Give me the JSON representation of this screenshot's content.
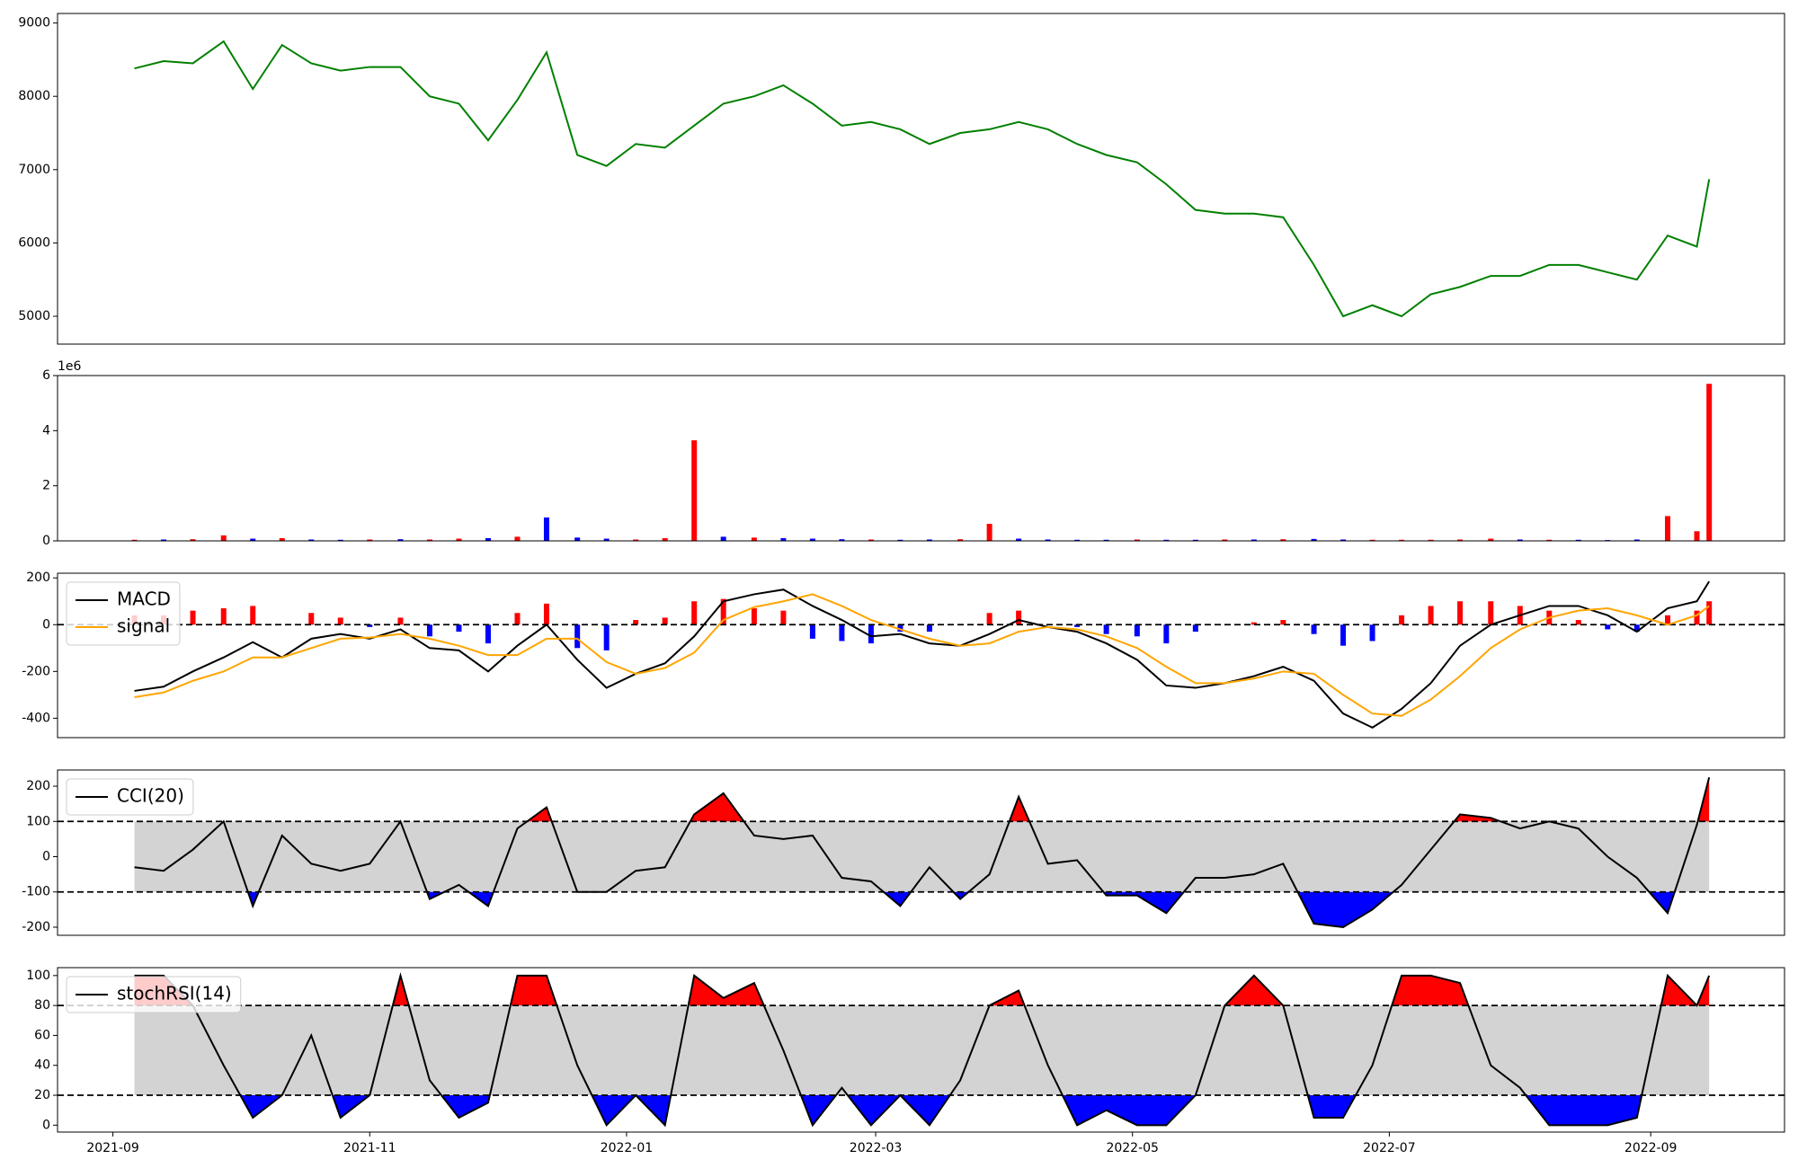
{
  "chart_data": [
    {
      "type": "line",
      "color": "green",
      "x": [
        2021.68,
        2021.699,
        2021.718,
        2021.738,
        2021.757,
        2021.776,
        2021.795,
        2021.814,
        2021.833,
        2021.853,
        2021.872,
        2021.891,
        2021.91,
        2021.929,
        2021.948,
        2021.968,
        2021.987,
        2022.006,
        2022.025,
        2022.044,
        2022.063,
        2022.083,
        2022.102,
        2022.121,
        2022.14,
        2022.159,
        2022.178,
        2022.197,
        2022.217,
        2022.236,
        2022.255,
        2022.274,
        2022.293,
        2022.312,
        2022.332,
        2022.351,
        2022.37,
        2022.389,
        2022.408,
        2022.427,
        2022.447,
        2022.466,
        2022.485,
        2022.504,
        2022.523,
        2022.542,
        2022.562,
        2022.581,
        2022.6,
        2022.619,
        2022.638,
        2022.657,
        2022.677,
        2022.696,
        2022.704
      ],
      "values": [
        8380,
        8480,
        8450,
        8750,
        8100,
        8700,
        8450,
        8350,
        8400,
        8400,
        8000,
        7900,
        7400,
        7950,
        8600,
        7200,
        7050,
        7350,
        7300,
        7600,
        7900,
        8000,
        8150,
        7900,
        7600,
        7650,
        7550,
        7350,
        7500,
        7550,
        7650,
        7550,
        7350,
        7200,
        7100,
        6800,
        6450,
        6400,
        6400,
        6350,
        5700,
        5000,
        5150,
        5000,
        5300,
        5400,
        5550,
        5550,
        5700,
        5700,
        5600,
        5500,
        6100,
        5950,
        6870
      ],
      "xlim": [
        2021.63,
        2022.753
      ],
      "ylim": [
        4620,
        9130
      ],
      "yticks": [
        5000,
        6000,
        7000,
        8000,
        9000
      ]
    },
    {
      "type": "bar",
      "y_offset_label": "1e6",
      "x": [
        2021.68,
        2021.699,
        2021.718,
        2021.738,
        2021.757,
        2021.776,
        2021.795,
        2021.814,
        2021.833,
        2021.853,
        2021.872,
        2021.891,
        2021.91,
        2021.929,
        2021.948,
        2021.968,
        2021.987,
        2022.006,
        2022.025,
        2022.044,
        2022.063,
        2022.083,
        2022.102,
        2022.121,
        2022.14,
        2022.159,
        2022.178,
        2022.197,
        2022.217,
        2022.236,
        2022.255,
        2022.274,
        2022.293,
        2022.312,
        2022.332,
        2022.351,
        2022.37,
        2022.389,
        2022.408,
        2022.427,
        2022.447,
        2022.466,
        2022.485,
        2022.504,
        2022.523,
        2022.542,
        2022.562,
        2022.581,
        2022.6,
        2022.619,
        2022.638,
        2022.657,
        2022.677,
        2022.696,
        2022.704
      ],
      "values": [
        0.04,
        0.05,
        0.06,
        0.2,
        0.08,
        0.1,
        0.05,
        0.04,
        0.05,
        0.06,
        0.05,
        0.08,
        0.1,
        0.15,
        0.85,
        0.12,
        0.08,
        0.05,
        0.1,
        3.65,
        0.15,
        0.12,
        0.1,
        0.08,
        0.06,
        0.05,
        0.04,
        0.05,
        0.06,
        0.62,
        0.08,
        0.05,
        0.04,
        0.04,
        0.05,
        0.04,
        0.04,
        0.05,
        0.05,
        0.06,
        0.07,
        0.05,
        0.04,
        0.04,
        0.04,
        0.05,
        0.08,
        0.05,
        0.04,
        0.04,
        0.03,
        0.05,
        0.9,
        0.35,
        5.7
      ],
      "colors": [
        "red",
        "blue",
        "red",
        "red",
        "blue",
        "red",
        "blue",
        "blue",
        "red",
        "blue",
        "red",
        "red",
        "blue",
        "red",
        "blue",
        "blue",
        "blue",
        "red",
        "red",
        "red",
        "blue",
        "red",
        "blue",
        "blue",
        "blue",
        "red",
        "blue",
        "blue",
        "red",
        "red",
        "blue",
        "blue",
        "blue",
        "blue",
        "red",
        "blue",
        "blue",
        "red",
        "blue",
        "red",
        "blue",
        "blue",
        "red",
        "red",
        "red",
        "red",
        "red",
        "blue",
        "red",
        "blue",
        "blue",
        "blue",
        "red",
        "red",
        "red"
      ],
      "xlim": [
        2021.63,
        2022.753
      ],
      "ylim": [
        0,
        6
      ],
      "yticks": [
        0,
        2,
        4,
        6
      ]
    },
    {
      "type": "macd",
      "legend": "upper left",
      "hlines": [
        0
      ],
      "x": [
        2021.68,
        2021.699,
        2021.718,
        2021.738,
        2021.757,
        2021.776,
        2021.795,
        2021.814,
        2021.833,
        2021.853,
        2021.872,
        2021.891,
        2021.91,
        2021.929,
        2021.948,
        2021.968,
        2021.987,
        2022.006,
        2022.025,
        2022.044,
        2022.063,
        2022.083,
        2022.102,
        2022.121,
        2022.14,
        2022.159,
        2022.178,
        2022.197,
        2022.217,
        2022.236,
        2022.255,
        2022.274,
        2022.293,
        2022.312,
        2022.332,
        2022.351,
        2022.37,
        2022.389,
        2022.408,
        2022.427,
        2022.447,
        2022.466,
        2022.485,
        2022.504,
        2022.523,
        2022.542,
        2022.562,
        2022.581,
        2022.6,
        2022.619,
        2022.638,
        2022.657,
        2022.677,
        2022.696,
        2022.704
      ],
      "series": [
        {
          "name": "MACD",
          "color": "black",
          "values": [
            -283,
            -265,
            -200,
            -140,
            -75,
            -140,
            -60,
            -40,
            -60,
            -20,
            -100,
            -110,
            -200,
            -90,
            0,
            -150,
            -270,
            -210,
            -165,
            -50,
            100,
            130,
            150,
            80,
            20,
            -50,
            -40,
            -80,
            -90,
            -40,
            20,
            -10,
            -30,
            -80,
            -150,
            -260,
            -270,
            -250,
            -220,
            -180,
            -240,
            -380,
            -440,
            -360,
            -250,
            -90,
            0,
            40,
            80,
            80,
            40,
            -30,
            70,
            100,
            185
          ]
        },
        {
          "name": "signal",
          "color": "orange",
          "values": [
            -310,
            -290,
            -240,
            -200,
            -140,
            -140,
            -100,
            -60,
            -55,
            -40,
            -60,
            -90,
            -130,
            -130,
            -60,
            -60,
            -160,
            -210,
            -185,
            -120,
            20,
            75,
            100,
            130,
            80,
            20,
            -20,
            -60,
            -90,
            -80,
            -30,
            -10,
            -20,
            -50,
            -100,
            -180,
            -250,
            -250,
            -230,
            -200,
            -210,
            -300,
            -380,
            -390,
            -320,
            -220,
            -100,
            -20,
            30,
            60,
            70,
            40,
            0,
            40,
            80
          ]
        }
      ],
      "histogram": {
        "up_color": "red",
        "down_color": "blue",
        "values": [
          40,
          40,
          60,
          70,
          80,
          0,
          50,
          30,
          -10,
          30,
          -50,
          -30,
          -80,
          50,
          90,
          -100,
          -110,
          20,
          30,
          100,
          110,
          70,
          60,
          -60,
          -70,
          -80,
          -30,
          -30,
          0,
          50,
          60,
          0,
          -10,
          -40,
          -50,
          -80,
          -30,
          0,
          10,
          20,
          -40,
          -90,
          -70,
          40,
          80,
          100,
          100,
          80,
          60,
          20,
          -20,
          -30,
          40,
          60,
          100
        ]
      },
      "xlim": [
        2021.63,
        2022.753
      ],
      "ylim": [
        -483,
        220
      ],
      "yticks": [
        -400,
        -200,
        0,
        200
      ]
    },
    {
      "type": "oscillator",
      "legend": "upper left",
      "band": [
        -100,
        100
      ],
      "hlines": [
        -100,
        100
      ],
      "band_color": "lightgray",
      "above_color": "red",
      "below_color": "blue",
      "x": [
        2021.68,
        2021.699,
        2021.718,
        2021.738,
        2021.757,
        2021.776,
        2021.795,
        2021.814,
        2021.833,
        2021.853,
        2021.872,
        2021.891,
        2021.91,
        2021.929,
        2021.948,
        2021.968,
        2021.987,
        2022.006,
        2022.025,
        2022.044,
        2022.063,
        2022.083,
        2022.102,
        2022.121,
        2022.14,
        2022.159,
        2022.178,
        2022.197,
        2022.217,
        2022.236,
        2022.255,
        2022.274,
        2022.293,
        2022.312,
        2022.332,
        2022.351,
        2022.37,
        2022.389,
        2022.408,
        2022.427,
        2022.447,
        2022.466,
        2022.485,
        2022.504,
        2022.523,
        2022.542,
        2022.562,
        2022.581,
        2022.6,
        2022.619,
        2022.638,
        2022.657,
        2022.677,
        2022.696,
        2022.704
      ],
      "series": [
        {
          "name": "CCI(20)",
          "color": "black",
          "values": [
            -30,
            -40,
            20,
            100,
            -140,
            60,
            -20,
            -40,
            -20,
            100,
            -120,
            -80,
            -140,
            80,
            140,
            -100,
            -100,
            -40,
            -30,
            120,
            180,
            60,
            50,
            60,
            -60,
            -70,
            -140,
            -30,
            -120,
            -50,
            170,
            -20,
            -10,
            -110,
            -110,
            -160,
            -60,
            -60,
            -50,
            -20,
            -190,
            -200,
            -150,
            -80,
            20,
            120,
            110,
            80,
            100,
            80,
            0,
            -60,
            -160,
            90,
            225
          ]
        }
      ],
      "xlim": [
        2021.63,
        2022.753
      ],
      "ylim": [
        -223,
        246
      ],
      "yticks": [
        -200,
        -100,
        0,
        100,
        200
      ]
    },
    {
      "type": "oscillator",
      "legend": "upper left",
      "band": [
        20,
        80
      ],
      "hlines": [
        20,
        80
      ],
      "band_color": "lightgray",
      "above_color": "red",
      "below_color": "blue",
      "x": [
        2021.68,
        2021.699,
        2021.718,
        2021.738,
        2021.757,
        2021.776,
        2021.795,
        2021.814,
        2021.833,
        2021.853,
        2021.872,
        2021.891,
        2021.91,
        2021.929,
        2021.948,
        2021.968,
        2021.987,
        2022.006,
        2022.025,
        2022.044,
        2022.063,
        2022.083,
        2022.102,
        2022.121,
        2022.14,
        2022.159,
        2022.178,
        2022.197,
        2022.217,
        2022.236,
        2022.255,
        2022.274,
        2022.293,
        2022.312,
        2022.332,
        2022.351,
        2022.37,
        2022.389,
        2022.408,
        2022.427,
        2022.447,
        2022.466,
        2022.485,
        2022.504,
        2022.523,
        2022.542,
        2022.562,
        2022.581,
        2022.6,
        2022.619,
        2022.638,
        2022.657,
        2022.677,
        2022.696,
        2022.704
      ],
      "series": [
        {
          "name": "stochRSI(14)",
          "color": "black",
          "values": [
            100,
            100,
            80,
            40,
            5,
            20,
            60,
            5,
            20,
            100,
            30,
            5,
            15,
            100,
            100,
            40,
            0,
            20,
            0,
            100,
            85,
            95,
            50,
            0,
            25,
            0,
            20,
            0,
            30,
            80,
            90,
            40,
            0,
            10,
            0,
            0,
            20,
            80,
            100,
            80,
            5,
            5,
            40,
            100,
            100,
            95,
            40,
            25,
            0,
            0,
            0,
            5,
            100,
            80,
            100
          ]
        }
      ],
      "xlim": [
        2021.63,
        2022.753
      ],
      "ylim": [
        -4.6,
        105.3
      ],
      "yticks": [
        0,
        20,
        40,
        60,
        80,
        100
      ],
      "xticks": [
        {
          "value": 2021.666,
          "label": "2021-09"
        },
        {
          "value": 2021.833,
          "label": "2021-11"
        },
        {
          "value": 2022.0,
          "label": "2022-01"
        },
        {
          "value": 2022.162,
          "label": "2022-03"
        },
        {
          "value": 2022.329,
          "label": "2022-05"
        },
        {
          "value": 2022.496,
          "label": "2022-07"
        },
        {
          "value": 2022.666,
          "label": "2022-09"
        }
      ]
    }
  ]
}
